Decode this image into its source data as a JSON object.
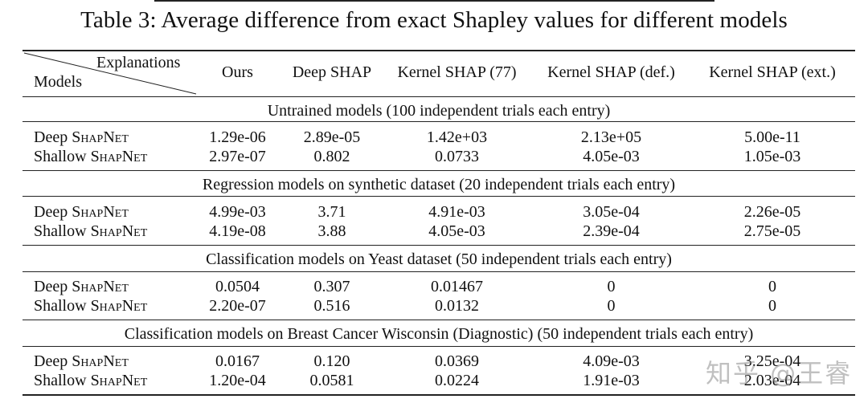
{
  "caption": "Table 3: Average difference from exact Shapley values for different models",
  "header": {
    "explanations_label": "Explanations",
    "models_label": "Models",
    "columns": [
      "Ours",
      "Deep SHAP",
      "Kernel SHAP (77)",
      "Kernel SHAP (def.)",
      "Kernel SHAP (ext.)"
    ]
  },
  "sections": [
    {
      "title": "Untrained models (100 independent trials each entry)",
      "rows": [
        {
          "prefix": "Deep ",
          "name": "ShapNet",
          "values": [
            "1.29e-06",
            "2.89e-05",
            "1.42e+03",
            "2.13e+05",
            "5.00e-11"
          ]
        },
        {
          "prefix": "Shallow ",
          "name": "ShapNet",
          "values": [
            "2.97e-07",
            "0.802",
            "0.0733",
            "4.05e-03",
            "1.05e-03"
          ]
        }
      ]
    },
    {
      "title": "Regression models on synthetic dataset (20 independent trials each entry)",
      "rows": [
        {
          "prefix": "Deep ",
          "name": "ShapNet",
          "values": [
            "4.99e-03",
            "3.71",
            "4.91e-03",
            "3.05e-04",
            "2.26e-05"
          ]
        },
        {
          "prefix": "Shallow ",
          "name": "ShapNet",
          "values": [
            "4.19e-08",
            "3.88",
            "4.05e-03",
            "2.39e-04",
            "2.75e-05"
          ]
        }
      ]
    },
    {
      "title": "Classification models on Yeast dataset (50 independent trials each entry)",
      "rows": [
        {
          "prefix": "Deep ",
          "name": "ShapNet",
          "values": [
            "0.0504",
            "0.307",
            "0.01467",
            "0",
            "0"
          ]
        },
        {
          "prefix": "Shallow ",
          "name": "ShapNet",
          "values": [
            "2.20e-07",
            "0.516",
            "0.0132",
            "0",
            "0"
          ]
        }
      ]
    },
    {
      "title": "Classification models on Breast Cancer Wisconsin (Diagnostic) (50 independent trials each entry)",
      "rows": [
        {
          "prefix": "Deep ",
          "name": "ShapNet",
          "values": [
            "0.0167",
            "0.120",
            "0.0369",
            "4.09e-03",
            "3.25e-04"
          ]
        },
        {
          "prefix": "Shallow ",
          "name": "ShapNet",
          "values": [
            "1.20e-04",
            "0.0581",
            "0.0224",
            "1.91e-03",
            "2.03e-04"
          ]
        }
      ]
    }
  ],
  "watermark": "知乎 @王睿"
}
